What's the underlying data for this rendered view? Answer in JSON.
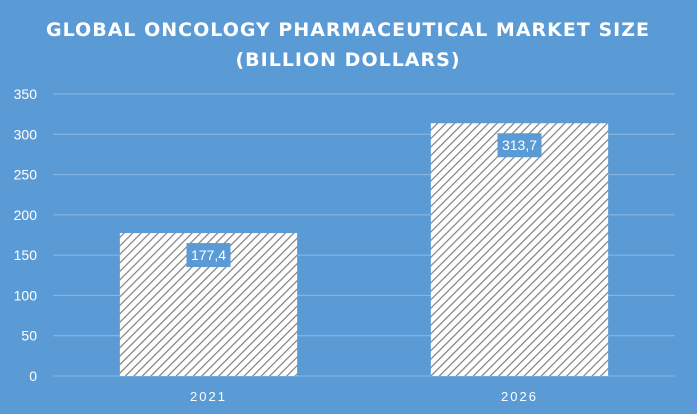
{
  "chart_data": {
    "type": "bar",
    "title_lines": [
      "GLOBAL ONCOLOGY PHARMACEUTICAL MARKET SIZE",
      "(BILLION DOLLARS)"
    ],
    "categories": [
      "2021",
      "2026"
    ],
    "values": [
      177.4,
      313.7
    ],
    "data_labels": [
      "177,4",
      "313,7"
    ],
    "y_ticks": [
      0,
      50,
      100,
      150,
      200,
      250,
      300,
      350
    ],
    "ylim": [
      0,
      350
    ],
    "grid": true,
    "legend": "none",
    "colors": {
      "background": "#5b9bd5",
      "bar_fill": "#ffffff",
      "bar_hatch": "#7f7f7f",
      "label_box": "#5b9bd5",
      "gridline": "#8bb9e3",
      "text": "#ffffff"
    }
  }
}
